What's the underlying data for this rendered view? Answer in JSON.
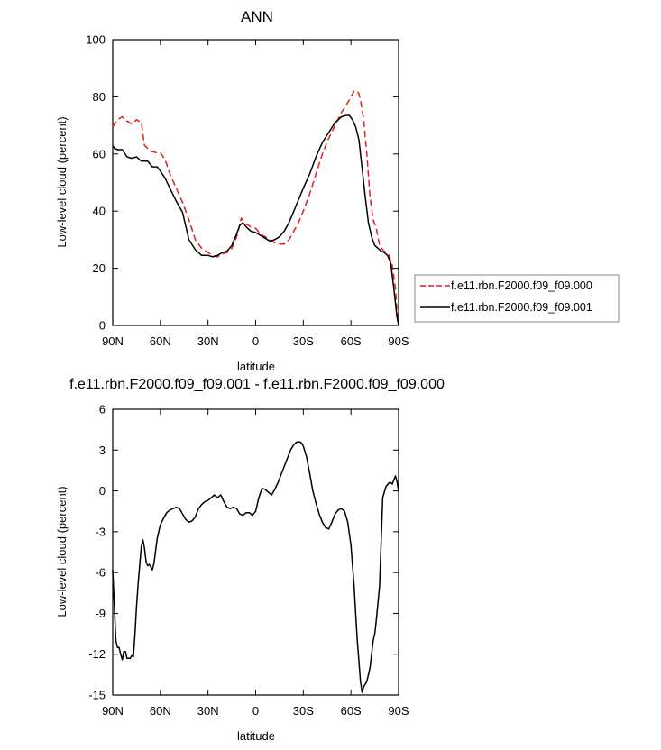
{
  "chart_data": [
    {
      "type": "line",
      "title": "ANN",
      "xlabel": "latitude",
      "ylabel": "Low-level cloud (percent)",
      "xlim": [
        90,
        -90
      ],
      "ylim": [
        0,
        100
      ],
      "x_tick_values": [
        90,
        60,
        30,
        0,
        -30,
        -60,
        -90
      ],
      "x_tick_labels": [
        "90N",
        "60N",
        "30N",
        "0",
        "30S",
        "60S",
        "90S"
      ],
      "y_tick_values": [
        0,
        20,
        40,
        60,
        80,
        100
      ],
      "y_tick_labels": [
        "0",
        "20",
        "40",
        "60",
        "80",
        "100"
      ],
      "legend_position": "right",
      "series": [
        {
          "name": "f.e11.rbn.F2000.f09_f09.000",
          "color": "#e0201c",
          "dash": "dashed",
          "x": [
            90,
            87,
            84,
            81,
            78,
            75,
            72,
            70,
            66,
            63,
            60,
            57,
            54,
            50,
            46,
            42,
            38,
            34,
            30,
            27,
            24,
            21,
            18,
            15,
            12,
            9,
            6,
            3,
            0,
            -3,
            -6,
            -9,
            -12,
            -15,
            -18,
            -21,
            -24,
            -27,
            -30,
            -34,
            -38,
            -42,
            -46,
            -50,
            -54,
            -57,
            -60,
            -62,
            -64,
            -65,
            -66,
            -68,
            -70,
            -72,
            -74,
            -76,
            -78,
            -80,
            -82,
            -84,
            -86,
            -88,
            -89,
            -90
          ],
          "y": [
            69.5,
            72,
            73,
            71.5,
            70.5,
            72,
            71,
            63,
            61,
            60.5,
            60.5,
            58,
            53,
            48,
            43,
            37,
            30,
            27,
            25.5,
            24.5,
            24,
            25,
            25.5,
            27,
            31,
            37.5,
            35.5,
            34.5,
            34,
            32,
            31,
            30,
            29,
            28.5,
            28.5,
            30,
            33,
            36,
            40,
            46,
            53,
            60,
            65.5,
            70,
            74.5,
            77,
            80,
            82,
            82,
            81,
            79,
            72,
            60,
            45,
            37,
            34,
            28,
            26.5,
            25.5,
            24.5,
            21,
            13,
            5,
            0
          ]
        },
        {
          "name": "f.e11.rbn.F2000.f09_f09.001",
          "color": "#000000",
          "dash": "solid",
          "x": [
            90,
            89,
            87,
            84,
            81,
            78,
            75,
            72,
            68,
            65,
            62,
            60,
            57,
            54,
            50,
            46,
            42,
            38,
            34,
            30,
            27,
            24,
            21,
            18,
            15,
            12,
            10,
            8,
            6,
            3,
            0,
            -3,
            -6,
            -9,
            -12,
            -15,
            -18,
            -21,
            -24,
            -27,
            -30,
            -34,
            -38,
            -42,
            -46,
            -50,
            -54,
            -57,
            -59,
            -61,
            -63,
            -65,
            -67,
            -69,
            -71,
            -73,
            -75,
            -77,
            -79,
            -81,
            -83,
            -85,
            -87,
            -89,
            -90
          ],
          "y": [
            63,
            62,
            61.5,
            61.5,
            59,
            58.5,
            59,
            57.5,
            57.5,
            55.5,
            55.5,
            54,
            51.5,
            48,
            43.5,
            39.5,
            30,
            26.5,
            24.5,
            24.5,
            24,
            24.5,
            25.5,
            26,
            28,
            32,
            35,
            36,
            34.5,
            33,
            32.5,
            31.5,
            30.5,
            29.5,
            30,
            31,
            33,
            36,
            40,
            44,
            48,
            53,
            59,
            64,
            67.5,
            71,
            73,
            73.5,
            73.5,
            72,
            69.5,
            65,
            55,
            45,
            36,
            31,
            28,
            27,
            26,
            25.5,
            24.5,
            22,
            13,
            3,
            0
          ]
        }
      ]
    },
    {
      "type": "line",
      "title": "f.e11.rbn.F2000.f09_f09.001 - f.e11.rbn.F2000.f09_f09.000",
      "xlabel": "latitude",
      "ylabel": "Low-level cloud (percent)",
      "xlim": [
        90,
        -90
      ],
      "ylim": [
        -15,
        6
      ],
      "x_tick_values": [
        90,
        60,
        30,
        0,
        -30,
        -60,
        -90
      ],
      "x_tick_labels": [
        "90N",
        "60N",
        "30N",
        "0",
        "30S",
        "60S",
        "90S"
      ],
      "y_tick_values": [
        6,
        3,
        0,
        -3,
        -6,
        -9,
        -12,
        -15
      ],
      "y_tick_labels": [
        "6",
        "3",
        "0",
        "-3",
        "-6",
        "-9",
        "-12",
        "-15"
      ],
      "series": [
        {
          "color": "#000000",
          "dash": "solid",
          "x": [
            90,
            89,
            88,
            87,
            86,
            85,
            84,
            83,
            82,
            81,
            80,
            79,
            78,
            77,
            76,
            75,
            74,
            72,
            71,
            70,
            69,
            68,
            67,
            66,
            65,
            64,
            62,
            60,
            58,
            56,
            54,
            52,
            50,
            48,
            46,
            44,
            42,
            40,
            38,
            36,
            34,
            32,
            30,
            28,
            26,
            24,
            22,
            20,
            18,
            16,
            14,
            12,
            10,
            8,
            6,
            4,
            2,
            0,
            -2,
            -4,
            -6,
            -8,
            -10,
            -12,
            -14,
            -16,
            -18,
            -20,
            -22,
            -24,
            -26,
            -28,
            -29,
            -30,
            -32,
            -34,
            -36,
            -38,
            -40,
            -42,
            -44,
            -46,
            -48,
            -50,
            -52,
            -54,
            -56,
            -58,
            -60,
            -62,
            -63,
            -64,
            -65,
            -66,
            -67,
            -68,
            -70,
            -72,
            -74,
            -75,
            -76,
            -78,
            -80,
            -82,
            -84,
            -85,
            -86,
            -87,
            -88,
            -89,
            -90
          ],
          "y": [
            -5.8,
            -8.5,
            -11,
            -11.5,
            -11.5,
            -12,
            -12.4,
            -11.8,
            -11.8,
            -12.3,
            -12.3,
            -12.3,
            -12.1,
            -12.2,
            -10.5,
            -8.5,
            -6.8,
            -4.1,
            -3.6,
            -4.2,
            -5.2,
            -5.5,
            -5.4,
            -5.6,
            -5.8,
            -5.3,
            -3.5,
            -2.5,
            -2.0,
            -1.6,
            -1.4,
            -1.3,
            -1.2,
            -1.3,
            -1.7,
            -2.1,
            -2.3,
            -2.2,
            -1.9,
            -1.3,
            -1.0,
            -0.8,
            -0.7,
            -0.5,
            -0.3,
            -0.5,
            -0.3,
            -0.8,
            -1.2,
            -1.3,
            -1.2,
            -1.3,
            -1.7,
            -1.8,
            -1.6,
            -1.6,
            -1.8,
            -1.5,
            -0.5,
            0.2,
            0.1,
            -0.1,
            -0.3,
            0.1,
            0.6,
            1.2,
            1.8,
            2.4,
            3.0,
            3.4,
            3.6,
            3.6,
            3.5,
            3.3,
            2.5,
            1.3,
            0.0,
            -0.9,
            -1.7,
            -2.3,
            -2.7,
            -2.8,
            -2.3,
            -1.7,
            -1.4,
            -1.3,
            -1.5,
            -2.3,
            -4.0,
            -7.0,
            -9.0,
            -11.0,
            -12.5,
            -14.0,
            -14.8,
            -14.4,
            -14.0,
            -13.0,
            -11.0,
            -10.5,
            -9.5,
            -7.0,
            -0.5,
            0.3,
            0.6,
            0.6,
            0.5,
            0.8,
            1.1,
            0.7,
            0.0
          ]
        }
      ]
    }
  ]
}
